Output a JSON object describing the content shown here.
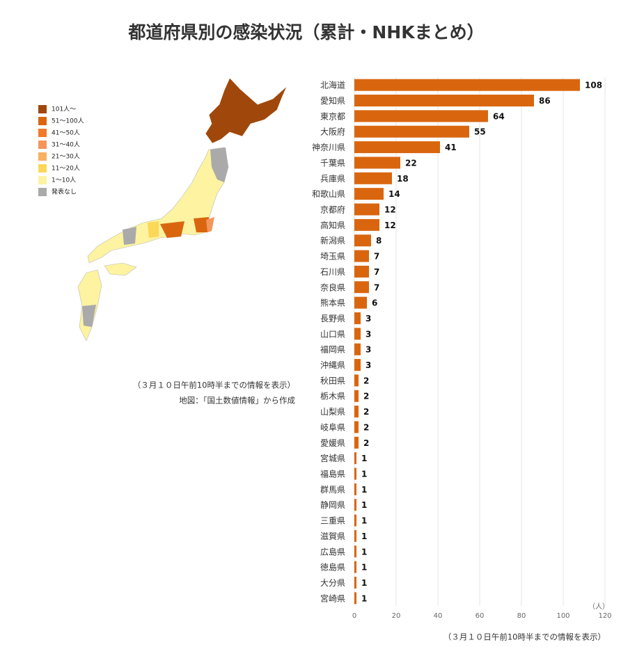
{
  "chart_data": {
    "type": "bar",
    "orientation": "horizontal",
    "title": "都道府県別の感染状況（累計・NHKまとめ）",
    "categories": [
      "北海道",
      "愛知県",
      "東京都",
      "大阪府",
      "神奈川県",
      "千葉県",
      "兵庫県",
      "和歌山県",
      "京都府",
      "高知県",
      "新潟県",
      "埼玉県",
      "石川県",
      "奈良県",
      "熊本県",
      "長野県",
      "山口県",
      "福岡県",
      "沖縄県",
      "秋田県",
      "栃木県",
      "山梨県",
      "岐阜県",
      "愛媛県",
      "宮城県",
      "福島県",
      "群馬県",
      "静岡県",
      "三重県",
      "滋賀県",
      "広島県",
      "徳島県",
      "大分県",
      "宮崎県"
    ],
    "values": [
      108,
      86,
      64,
      55,
      41,
      22,
      18,
      14,
      12,
      12,
      8,
      7,
      7,
      7,
      6,
      3,
      3,
      3,
      3,
      2,
      2,
      2,
      2,
      2,
      1,
      1,
      1,
      1,
      1,
      1,
      1,
      1,
      1,
      1
    ],
    "color": "#d9660f",
    "xlim": [
      0,
      120
    ],
    "xticks": [
      0,
      20,
      40,
      60,
      80,
      100,
      120
    ],
    "x_unit": "（人）",
    "grid": true,
    "footnote": "（３月１０日午前10時半までの情報を表示）"
  },
  "map": {
    "legend": [
      {
        "label": "101人～",
        "color": "#a0480b"
      },
      {
        "label": "51～100人",
        "color": "#d9660f"
      },
      {
        "label": "41～50人",
        "color": "#f07a2a"
      },
      {
        "label": "31～40人",
        "color": "#f4955a"
      },
      {
        "label": "21～30人",
        "color": "#f9b060"
      },
      {
        "label": "11～20人",
        "color": "#fbd75a"
      },
      {
        "label": "1～10人",
        "color": "#fdf3a0"
      },
      {
        "label": "発表なし",
        "color": "#aaaaaa"
      }
    ],
    "notes": [
      "（３月１０日午前10時半までの情報を表示）",
      "地図：「国土数値情報」から作成"
    ]
  }
}
